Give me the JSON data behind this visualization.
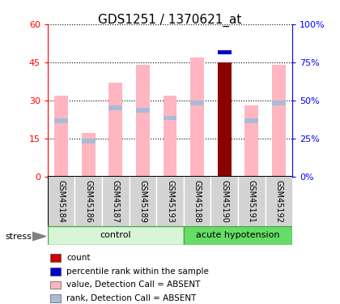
{
  "title": "GDS1251 / 1370621_at",
  "samples": [
    "GSM45184",
    "GSM45186",
    "GSM45187",
    "GSM45189",
    "GSM45193",
    "GSM45188",
    "GSM45190",
    "GSM45191",
    "GSM45192"
  ],
  "groups": [
    "control",
    "control",
    "control",
    "control",
    "control",
    "acute hypotension",
    "acute hypotension",
    "acute hypotension",
    "acute hypotension"
  ],
  "value_absent": [
    32,
    17,
    37,
    44,
    32,
    47,
    45,
    28,
    44
  ],
  "rank_absent": [
    22,
    14,
    27,
    26,
    23,
    29,
    49,
    22,
    29
  ],
  "count": [
    0,
    0,
    0,
    0,
    0,
    0,
    45,
    0,
    0
  ],
  "percentile_rank": [
    0,
    0,
    0,
    0,
    0,
    0,
    49,
    0,
    0
  ],
  "highlighted_sample": "GSM45190",
  "control_count": 5,
  "hypo_count": 4,
  "ylim_left": [
    0,
    60
  ],
  "ylim_right": [
    0,
    100
  ],
  "yticks_left": [
    0,
    15,
    30,
    45,
    60
  ],
  "yticks_right": [
    0,
    25,
    50,
    75,
    100
  ],
  "ytick_labels_left": [
    "0",
    "15",
    "30",
    "45",
    "60"
  ],
  "ytick_labels_right": [
    "0%",
    "25%",
    "50%",
    "75%",
    "100%"
  ],
  "color_value_absent": "#FFB6C1",
  "color_rank_absent": "#AABBD8",
  "color_count": "#8B0000",
  "color_percentile": "#0000CC",
  "color_control_light": "#D8F5D8",
  "color_hypotension_bg": "#66DD66",
  "color_xticklabel_bg": "#D3D3D3",
  "bar_width": 0.5,
  "legend_items": [
    {
      "label": "count",
      "color": "#CC0000"
    },
    {
      "label": "percentile rank within the sample",
      "color": "#0000CC"
    },
    {
      "label": "value, Detection Call = ABSENT",
      "color": "#FFB6C1"
    },
    {
      "label": "rank, Detection Call = ABSENT",
      "color": "#AABBD8"
    }
  ]
}
